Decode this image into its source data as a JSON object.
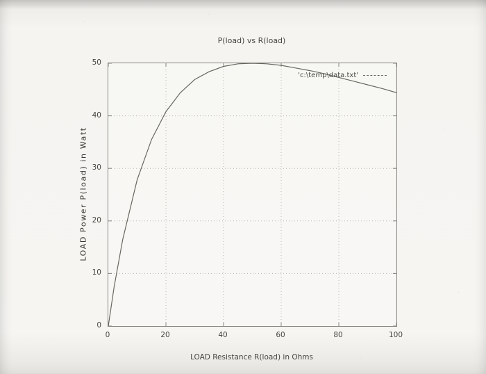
{
  "chart_data": {
    "type": "line",
    "title": "P(load) vs R(load)",
    "xlabel": "LOAD Resistance R(load) in Ohms",
    "ylabel": "LOAD Power P(load) in Watt",
    "xlim": [
      0,
      100
    ],
    "ylim": [
      0,
      50
    ],
    "x_ticks": [
      0,
      20,
      40,
      60,
      80,
      100
    ],
    "y_ticks": [
      0,
      10,
      20,
      30,
      40,
      50
    ],
    "grid": true,
    "legend": {
      "label": "'c:\\temp\\data.txt'",
      "position": "top-right",
      "line_style": "dashed"
    },
    "series": [
      {
        "name": "'c:\\temp\\data.txt'",
        "x": [
          0,
          2,
          5,
          10,
          15,
          20,
          25,
          30,
          35,
          40,
          45,
          50,
          55,
          60,
          65,
          70,
          75,
          80,
          85,
          90,
          95,
          100
        ],
        "y": [
          0,
          7.4,
          16.5,
          27.8,
          35.5,
          40.8,
          44.4,
          46.9,
          48.4,
          49.4,
          49.9,
          50,
          49.9,
          49.6,
          49.1,
          48.6,
          48.0,
          47.3,
          46.6,
          45.9,
          45.2,
          44.4
        ]
      }
    ]
  },
  "colors": {
    "curve": "#58584f",
    "grid": "#b8b7b0",
    "frame": "#85847e",
    "text": "#45453f"
  }
}
